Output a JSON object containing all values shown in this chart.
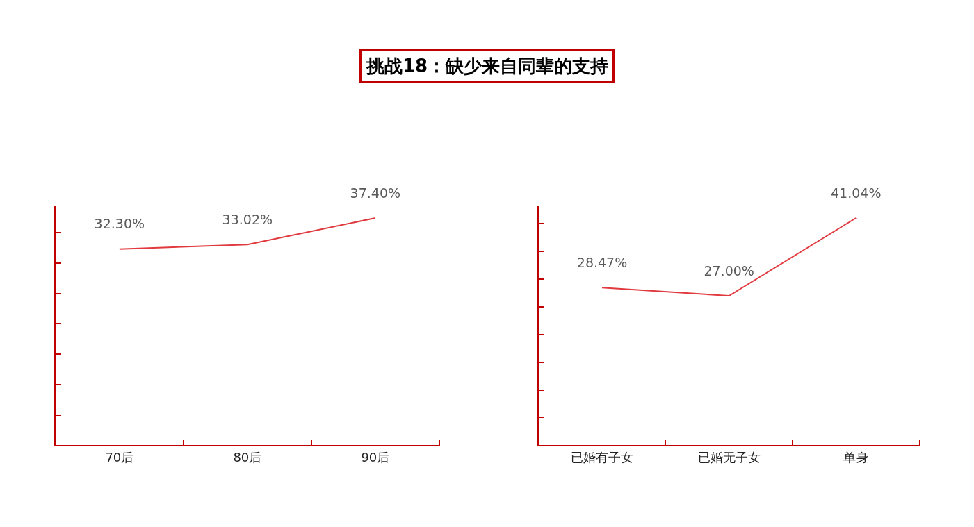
{
  "chart_data": [
    {
      "type": "line",
      "title": "挑战18：缺少来自同辈的支持",
      "categories": [
        "70后",
        "80后",
        "90后"
      ],
      "series": [
        {
          "color": "#e0393e",
          "values": [
            32.3,
            33.02,
            37.4
          ],
          "value_labels": [
            "32.30%",
            "33.02%",
            "37.40%"
          ]
        }
      ],
      "tick_labels": "x",
      "marker": "none",
      "line_style": "solid"
    },
    {
      "type": "line",
      "categories": [
        "已婚有子女",
        "已婚无子女",
        "单身"
      ],
      "series": [
        {
          "color": "#e0393e",
          "values": [
            28.47,
            27.0,
            41.04
          ],
          "value_labels": [
            "28.47%",
            "27.00%",
            "41.04%"
          ]
        }
      ],
      "tick_labels": "x",
      "marker": "none",
      "line_style": "solid"
    }
  ]
}
